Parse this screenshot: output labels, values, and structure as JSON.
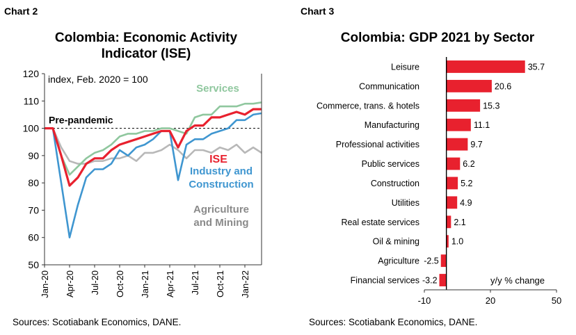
{
  "chart_data": [
    {
      "panel_label": "Chart 2",
      "type": "line",
      "title_line1": "Colombia: Economic Activity",
      "title_line2": "Indicator (ISE)",
      "annotation": "index, Feb. 2020 = 100",
      "reference_line": {
        "label": "Pre-pandemic",
        "value": 100
      },
      "ylim": [
        50,
        120
      ],
      "yticks": [
        50,
        60,
        70,
        80,
        90,
        100,
        110,
        120
      ],
      "xlim": [
        0,
        26
      ],
      "xticks": [
        {
          "x": 0,
          "label": "Jan-20"
        },
        {
          "x": 3,
          "label": "Apr-20"
        },
        {
          "x": 6,
          "label": "Jul-20"
        },
        {
          "x": 9,
          "label": "Oct-20"
        },
        {
          "x": 12,
          "label": "Jan-21"
        },
        {
          "x": 15,
          "label": "Apr-21"
        },
        {
          "x": 18,
          "label": "Jul-21"
        },
        {
          "x": 21,
          "label": "Oct-21"
        },
        {
          "x": 24,
          "label": "Jan-22"
        }
      ],
      "series": [
        {
          "name": "Agriculture and Mining",
          "label_line1": "Agriculture",
          "label_line2": "and Mining",
          "color": "#b8b8b8",
          "x": [
            1,
            2,
            3,
            4,
            5,
            6,
            7,
            8,
            9,
            10,
            11,
            12,
            13,
            14,
            15,
            16,
            17,
            18,
            19,
            20,
            21,
            22,
            23,
            24,
            25,
            26
          ],
          "values": [
            100,
            93,
            88,
            87,
            87,
            88,
            88,
            89,
            89,
            90,
            88,
            91,
            91,
            92,
            94,
            92,
            89,
            92,
            92,
            91,
            93,
            92,
            94,
            91,
            93,
            91
          ]
        },
        {
          "name": "Services",
          "color": "#8fc79e",
          "x": [
            1,
            2,
            3,
            4,
            5,
            6,
            7,
            8,
            9,
            10,
            11,
            12,
            13,
            14,
            15,
            16,
            17,
            18,
            19,
            20,
            21,
            22,
            23,
            24,
            25,
            26
          ],
          "values": [
            100,
            90,
            83,
            86,
            89,
            91,
            92,
            94,
            97,
            98,
            98,
            99,
            99,
            100,
            100,
            99,
            98,
            104,
            105,
            105,
            108,
            108,
            108,
            109,
            109,
            109.5
          ]
        },
        {
          "name": "Industry and Construction",
          "label_line1": "Industry and",
          "label_line2": "Construction",
          "color": "#3f96d0",
          "x": [
            1,
            2,
            3,
            4,
            5,
            6,
            7,
            8,
            9,
            10,
            11,
            12,
            13,
            14,
            15,
            16,
            17,
            18,
            19,
            20,
            21,
            22,
            23,
            24,
            25,
            26
          ],
          "values": [
            100,
            80,
            60,
            72,
            82,
            85,
            85,
            87,
            92,
            90,
            93,
            94,
            96,
            99,
            99,
            81,
            94,
            96,
            96,
            98,
            99,
            100,
            103,
            103,
            105,
            105.5
          ]
        },
        {
          "name": "ISE",
          "color": "#e8212e",
          "x": [
            1,
            2,
            3,
            4,
            5,
            6,
            7,
            8,
            9,
            10,
            11,
            12,
            13,
            14,
            15,
            16,
            17,
            18,
            19,
            20,
            21,
            22,
            23,
            24,
            25,
            26
          ],
          "values": [
            100,
            90,
            79,
            82,
            87,
            89,
            89,
            92,
            94,
            95,
            96,
            97,
            98,
            99,
            99,
            93,
            99,
            101,
            101,
            104,
            104,
            105,
            106,
            105,
            107,
            107
          ]
        }
      ],
      "source": "Sources: Scotiabank Economics, DANE."
    },
    {
      "panel_label": "Chart 3",
      "type": "bar",
      "orientation": "horizontal",
      "title": "Colombia: GDP 2021 by Sector",
      "xlabel": "y/y % change",
      "xlim": [
        -10,
        50
      ],
      "xticks": [
        -10,
        20,
        50
      ],
      "color": "#e8212e",
      "categories": [
        "Leisure",
        "Communication",
        "Commerce, trans. & hotels",
        "Manufacturing",
        "Professional activities",
        "Public services",
        "Construction",
        "Utilities",
        "Real estate services",
        "Oil & mining",
        "Agriculture",
        "Financial services"
      ],
      "values": [
        35.7,
        20.6,
        15.3,
        11.1,
        9.7,
        6.2,
        5.2,
        4.9,
        2.1,
        1.0,
        -2.5,
        -3.2
      ],
      "value_labels": [
        "35.7",
        "20.6",
        "15.3",
        "11.1",
        "9.7",
        "6.2",
        "5.2",
        "4.9",
        "2.1",
        "1.0",
        "-2.5",
        "-3.2"
      ],
      "source": "Sources: Scotiabank Economics, DANE."
    }
  ]
}
